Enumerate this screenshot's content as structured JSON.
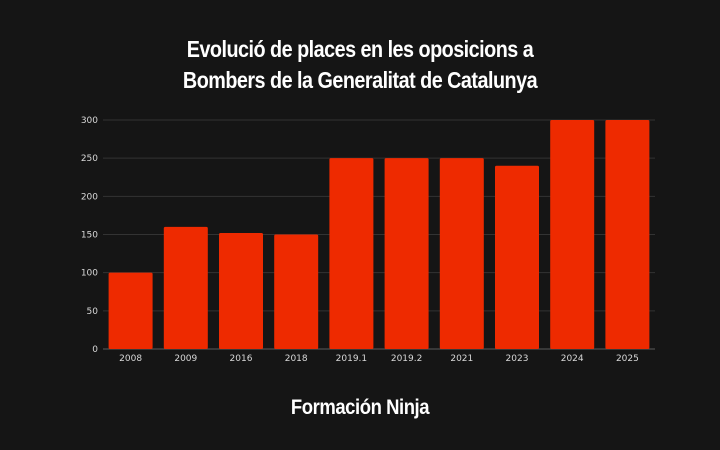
{
  "chart_data": {
    "type": "bar",
    "title_lines": [
      "Evolució de places en les oposicions a",
      "Bombers de la Generalitat de Catalunya"
    ],
    "categories": [
      "2008",
      "2009",
      "2016",
      "2018",
      "2019.1",
      "2019.2",
      "2021",
      "2023",
      "2024",
      "2025"
    ],
    "values": [
      100,
      160,
      152,
      150,
      250,
      250,
      250,
      240,
      300,
      300
    ],
    "y_ticks": [
      "0",
      "50",
      "100",
      "150",
      "200",
      "250",
      "300"
    ],
    "ylim": [
      0,
      300
    ],
    "grid": true,
    "bar_color": "#ee2a00"
  },
  "brand": "Formación Ninja"
}
